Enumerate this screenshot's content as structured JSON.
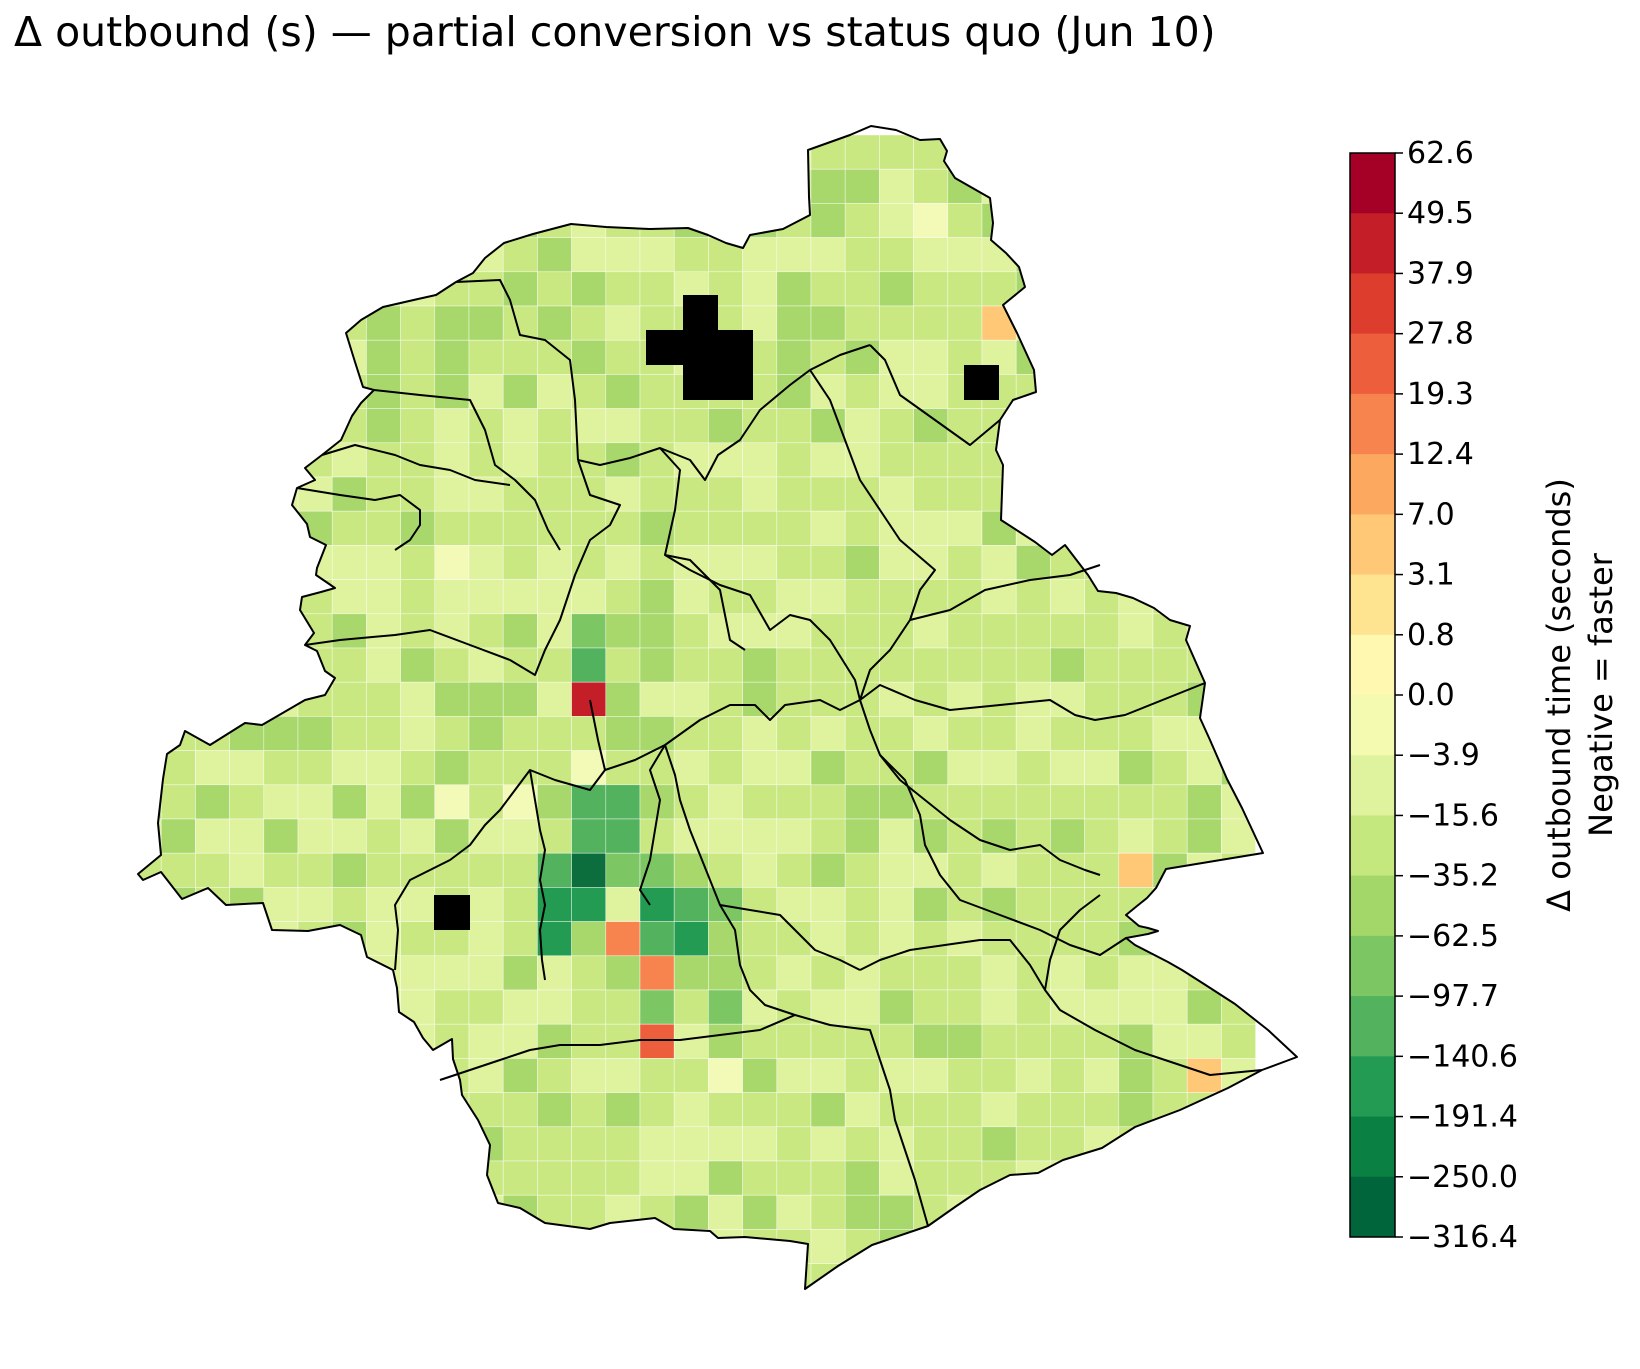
{
  "title": "Δ outbound (s) — partial conversion vs status quo (Jun 10)",
  "colorbar": {
    "label_line1": "Δ outbound time (seconds)",
    "label_line2": "Negative = faster",
    "ticks": [
      "62.6",
      "49.5",
      "37.9",
      "27.8",
      "19.3",
      "12.4",
      "7.0",
      "3.1",
      "0.8",
      "0.0",
      "−3.9",
      "−15.6",
      "−35.2",
      "−62.5",
      "−97.7",
      "−140.6",
      "−191.4",
      "−250.0",
      "−316.4"
    ],
    "colors_top_to_bottom": [
      "#a50026",
      "#c41e28",
      "#dd3d2d",
      "#ed5f3c",
      "#f7844e",
      "#fca85e",
      "#fec877",
      "#fee391",
      "#fff8b0",
      "#f4fab0",
      "#dff29d",
      "#c4e77e",
      "#a3d769",
      "#7dc664",
      "#52b25e",
      "#239b53",
      "#0b8043",
      "#00653b"
    ]
  },
  "palette": {
    "base_light": "#dff29d",
    "base": "#c9e882",
    "mid": "#a8d86c",
    "med_green": "#7dc664",
    "green": "#52b25e",
    "deep_green": "#239b53",
    "darkest": "#0b6e3c",
    "pale": "#f3f9b6",
    "peach": "#fec877",
    "orange": "#f7844e",
    "red_orange": "#ed5f3c",
    "red": "#c41e28",
    "no_data": "#000000",
    "outline": "#000000"
  }
}
